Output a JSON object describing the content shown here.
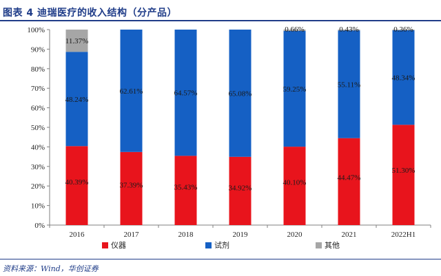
{
  "header": {
    "title": "图表 4   迪瑞医疗的收入结构（分产品）"
  },
  "footer": {
    "source": "资料来源：Wind，华创证券"
  },
  "colors": {
    "instrument": "#e8141c",
    "reagent": "#1560c4",
    "other": "#a6a6a6",
    "title": "#1f3c88"
  },
  "chart_data": {
    "type": "bar",
    "stacked": true,
    "categories": [
      "2016",
      "2017",
      "2018",
      "2019",
      "2020",
      "2021",
      "2022H1"
    ],
    "series": [
      {
        "name": "仪器",
        "values": [
          40.39,
          37.39,
          35.43,
          34.92,
          40.1,
          44.47,
          51.3
        ],
        "labels": [
          "40.39%",
          "37.39%",
          "35.43%",
          "34.92%",
          "40.10%",
          "44.47%",
          "51.30%"
        ]
      },
      {
        "name": "试剂",
        "values": [
          48.24,
          62.61,
          64.57,
          65.08,
          59.25,
          55.11,
          48.34
        ],
        "labels": [
          "48.24%",
          "62.61%",
          "64.57%",
          "65.08%",
          "59.25%",
          "55.11%",
          "48.34%"
        ]
      },
      {
        "name": "其他",
        "values": [
          11.37,
          0,
          0,
          0,
          0.66,
          0.43,
          0.36
        ],
        "labels": [
          "11.37%",
          "",
          "",
          "",
          "0.66%",
          "0.43%",
          "0.36%"
        ]
      }
    ],
    "yticks": [
      "0%",
      "10%",
      "20%",
      "30%",
      "40%",
      "50%",
      "60%",
      "70%",
      "80%",
      "90%",
      "100%"
    ],
    "ylim": [
      0,
      100
    ],
    "legend_position": "bottom",
    "grid": false
  }
}
